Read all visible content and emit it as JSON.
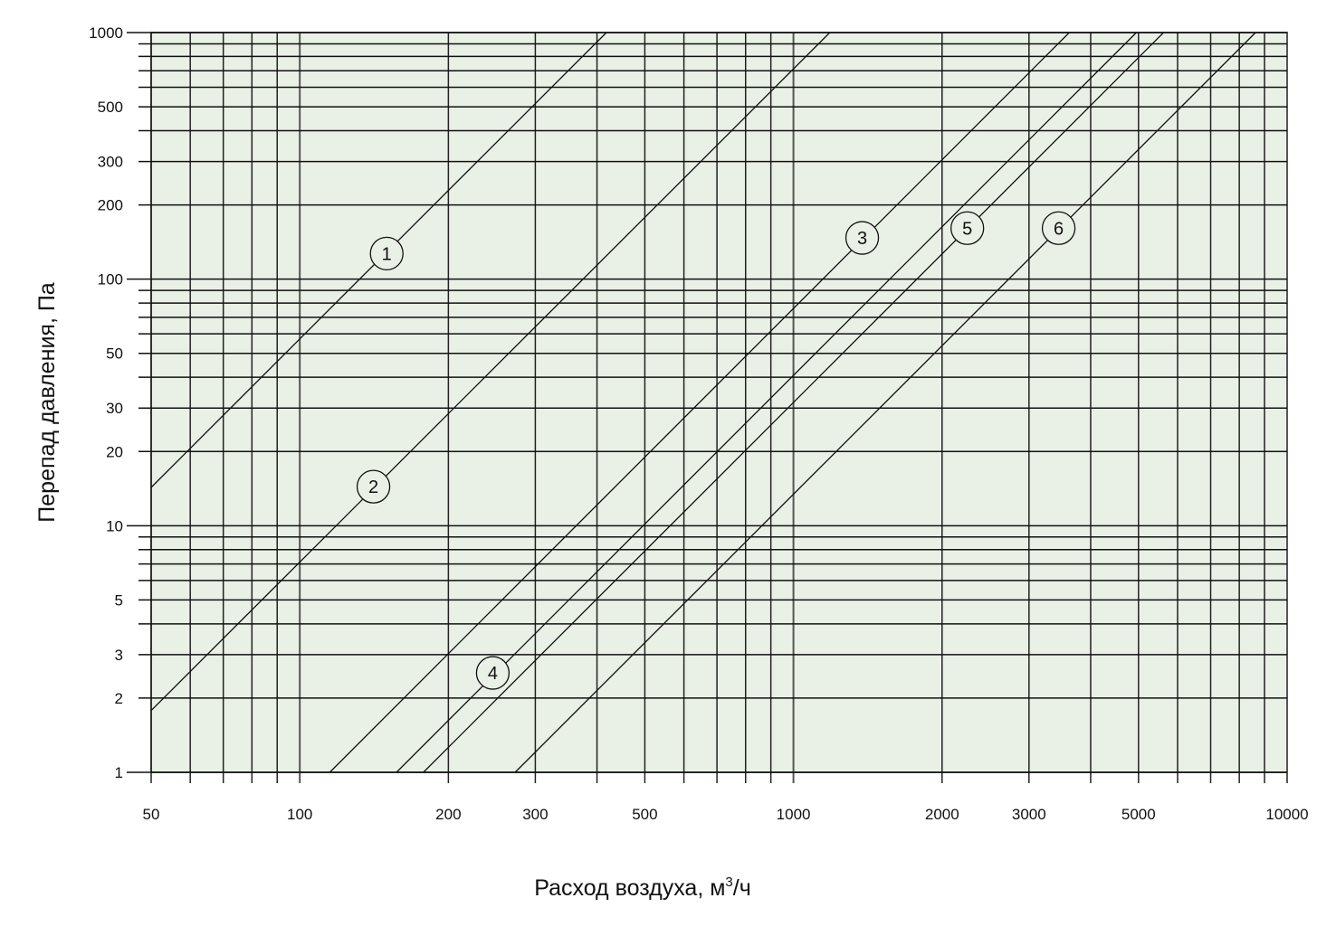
{
  "chart_data": {
    "type": "line",
    "title": "",
    "xlabel": "Расход воздуха, м",
    "xlabel_sup": "3",
    "xlabel_tail": "/ч",
    "ylabel": "Перепад давления, Па",
    "x_scale": "log",
    "y_scale": "log",
    "xlim": [
      50,
      10000
    ],
    "ylim": [
      1,
      1000
    ],
    "grid": true,
    "background_color": "#e9f0e6",
    "line_color": "#111111",
    "x_ticks": [
      50,
      100,
      200,
      300,
      500,
      1000,
      2000,
      3000,
      5000,
      10000
    ],
    "x_tick_labels": [
      "50",
      "100",
      "200",
      "300",
      "500",
      "1000",
      "2000",
      "3000",
      "5000",
      "10000"
    ],
    "y_ticks": [
      1,
      2,
      3,
      5,
      10,
      20,
      30,
      50,
      100,
      200,
      300,
      500,
      1000
    ],
    "y_tick_labels": [
      "1",
      "2",
      "3",
      "5",
      "10",
      "20",
      "30",
      "50",
      "100",
      "200",
      "300",
      "500",
      "1000"
    ],
    "series": [
      {
        "name": "1",
        "points": [
          [
            50,
            14.3
          ],
          [
            418,
            1000
          ]
        ],
        "label_at": [
          150,
          127
        ]
      },
      {
        "name": "2",
        "points": [
          [
            50,
            1.78
          ],
          [
            1185,
            1000
          ]
        ],
        "label_at": [
          141,
          14.4
        ]
      },
      {
        "name": "3",
        "points": [
          [
            115,
            1
          ],
          [
            3620,
            1000
          ]
        ],
        "label_at": [
          1378,
          147
        ]
      },
      {
        "name": "4",
        "points": [
          [
            157,
            1
          ],
          [
            4950,
            1000
          ]
        ],
        "label_at": [
          246,
          2.53
        ]
      },
      {
        "name": "5",
        "points": [
          [
            178,
            1
          ],
          [
            5620,
            1000
          ]
        ],
        "label_at": [
          2250,
          161
        ]
      },
      {
        "name": "6",
        "points": [
          [
            273,
            1
          ],
          [
            8630,
            1000
          ]
        ],
        "label_at": [
          3445,
          161
        ]
      }
    ]
  }
}
